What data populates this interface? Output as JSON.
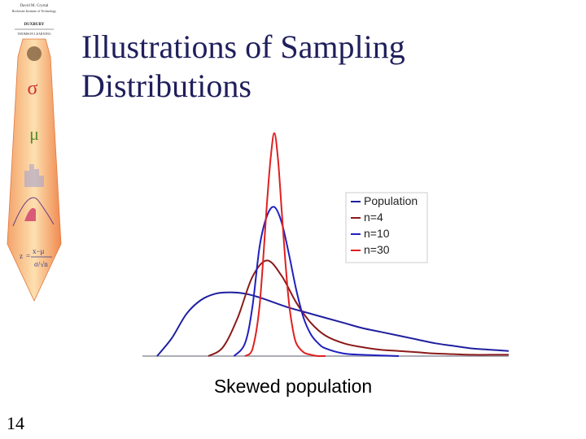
{
  "slide": {
    "title_line1": "Illustrations of  Sampling",
    "title_line2": "Distributions",
    "caption": "Skewed  population",
    "page_number": "14"
  },
  "logo": {
    "author": "David M. Crystal",
    "institution": "Rochester Institute of Technology",
    "publisher": "DUXBURY",
    "imprint": "THOMSON LEARNING",
    "symbols": [
      "σ",
      "μ"
    ]
  },
  "chart_data": {
    "type": "line",
    "title": "",
    "xlabel": "",
    "ylabel": "",
    "xlim": [
      0,
      10
    ],
    "ylim": [
      0,
      1.85
    ],
    "grid": false,
    "legend_position": "top-right",
    "series": [
      {
        "name": "Population",
        "color": "#1f1fa0",
        "x": [
          0.4,
          0.8,
          1.2,
          1.6,
          2.0,
          2.4,
          2.8,
          3.2,
          3.6,
          4.0,
          4.5,
          5.0,
          5.5,
          6.0,
          6.5,
          7.0,
          7.5,
          8.0,
          8.5,
          9.0,
          9.5,
          10.0
        ],
        "y": [
          0.0,
          0.14,
          0.33,
          0.44,
          0.49,
          0.5,
          0.49,
          0.46,
          0.42,
          0.38,
          0.34,
          0.3,
          0.26,
          0.22,
          0.19,
          0.16,
          0.13,
          0.1,
          0.08,
          0.06,
          0.05,
          0.04
        ]
      },
      {
        "name": "n=4",
        "color": "#8b1a1a",
        "x": [
          1.8,
          2.2,
          2.6,
          3.0,
          3.4,
          3.8,
          4.2,
          4.6,
          5.0,
          5.5,
          6.0,
          6.5,
          7.0,
          7.5,
          8.0,
          8.5,
          9.0,
          9.5,
          10.0
        ],
        "y": [
          0.0,
          0.07,
          0.3,
          0.62,
          0.75,
          0.63,
          0.42,
          0.26,
          0.16,
          0.1,
          0.07,
          0.05,
          0.04,
          0.03,
          0.02,
          0.015,
          0.01,
          0.01,
          0.01
        ]
      },
      {
        "name": "n=10",
        "color": "#2020c0",
        "x": [
          2.5,
          2.8,
          3.0,
          3.2,
          3.4,
          3.6,
          3.8,
          4.0,
          4.2,
          4.4,
          4.6,
          4.8,
          5.0,
          5.5,
          6.0,
          6.5,
          7.0
        ],
        "y": [
          0.0,
          0.1,
          0.38,
          0.86,
          1.1,
          1.17,
          1.05,
          0.8,
          0.52,
          0.3,
          0.17,
          0.1,
          0.06,
          0.02,
          0.01,
          0.005,
          0.0
        ]
      },
      {
        "name": "n=30",
        "color": "#e02020",
        "x": [
          2.8,
          3.0,
          3.2,
          3.4,
          3.5,
          3.6,
          3.7,
          3.8,
          3.9,
          4.0,
          4.1,
          4.2,
          4.4,
          4.6,
          4.8,
          5.0
        ],
        "y": [
          0.0,
          0.05,
          0.4,
          1.2,
          1.55,
          1.75,
          1.55,
          1.15,
          0.75,
          0.42,
          0.22,
          0.1,
          0.03,
          0.01,
          0.0,
          0.0
        ]
      }
    ]
  }
}
